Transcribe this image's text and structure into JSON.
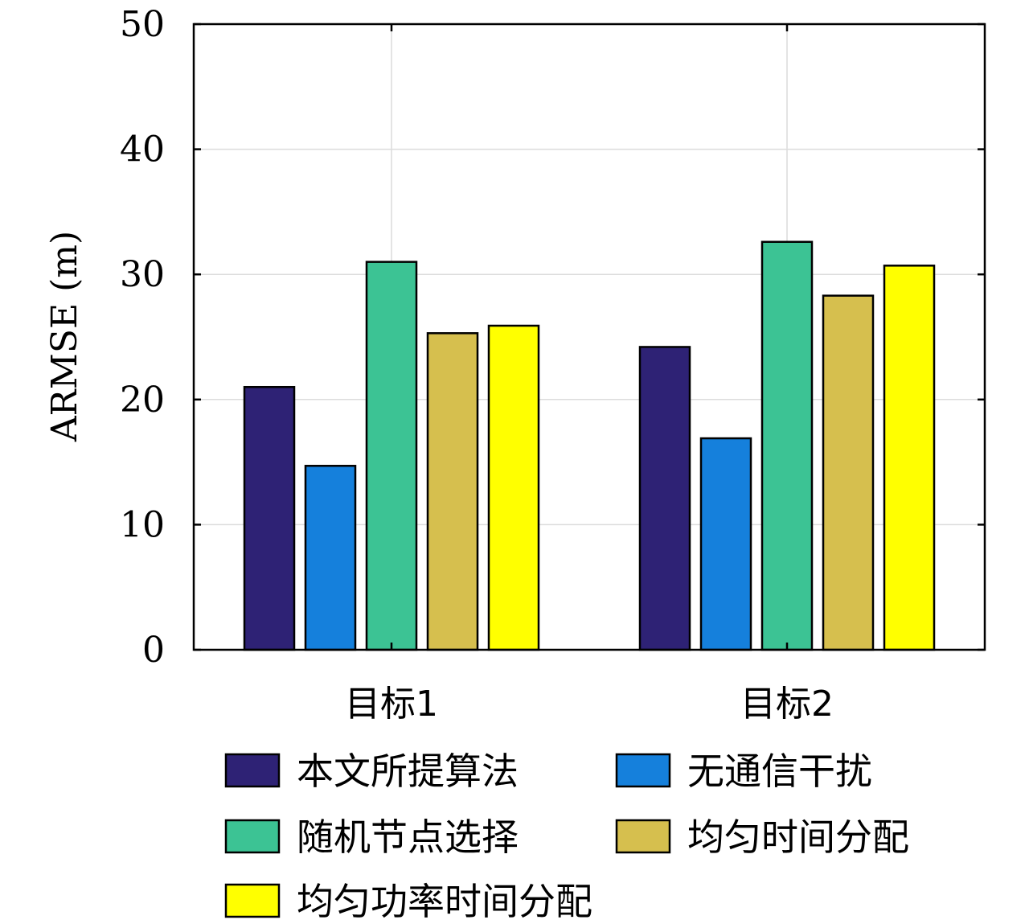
{
  "chart_data": {
    "type": "bar",
    "categories": [
      "目标1",
      "目标2"
    ],
    "series": [
      {
        "name": "本文所提算法",
        "color": "#2e2275",
        "values": [
          21.0,
          24.2
        ]
      },
      {
        "name": "无通信干扰",
        "color": "#1580dc",
        "values": [
          14.7,
          16.9
        ]
      },
      {
        "name": "随机节点选择",
        "color": "#3cc394",
        "values": [
          31.0,
          32.6
        ]
      },
      {
        "name": "均匀时间分配",
        "color": "#d6bf4e",
        "values": [
          25.3,
          28.3
        ]
      },
      {
        "name": "均匀功率时间分配",
        "color": "#ffff00",
        "values": [
          25.9,
          30.7
        ]
      }
    ],
    "ylabel": "ARMSE (m)",
    "ylim": [
      0,
      50
    ],
    "yticks": [
      0,
      10,
      20,
      30,
      40,
      50
    ],
    "grid": true,
    "legend_position": "bottom"
  }
}
